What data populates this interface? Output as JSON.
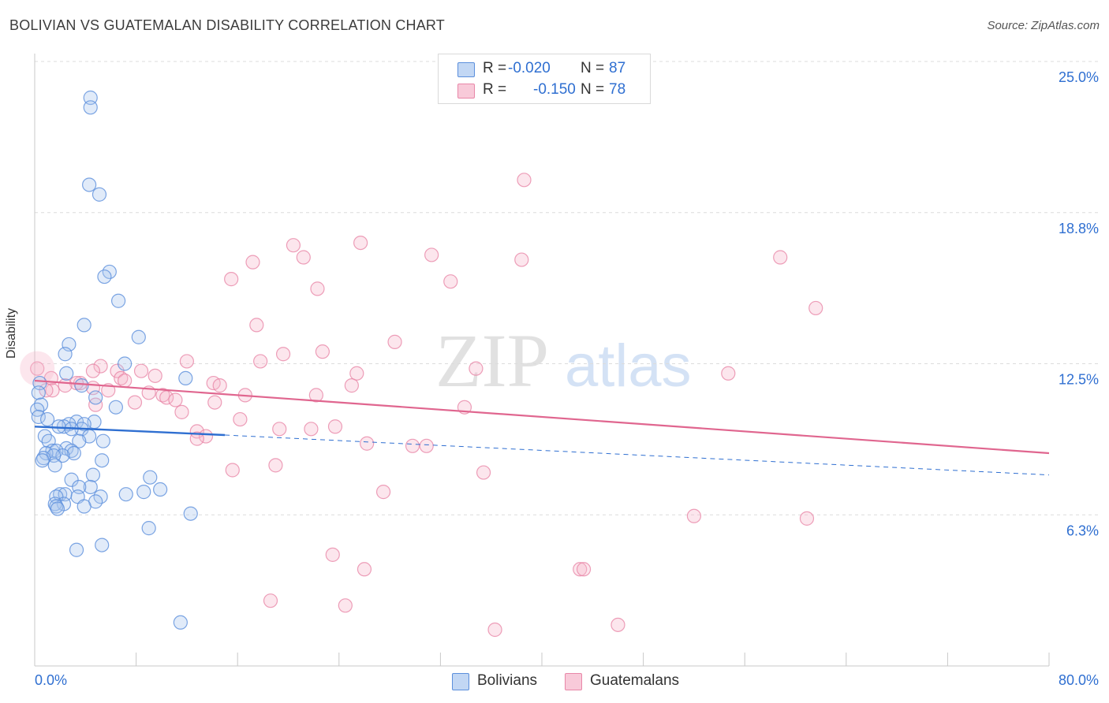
{
  "title": "BOLIVIAN VS GUATEMALAN DISABILITY CORRELATION CHART",
  "source": "Source: ZipAtlas.com",
  "watermark": {
    "zip": "ZIP",
    "atlas": "atlas"
  },
  "legend": {
    "rows": [
      {
        "r_label": "R =",
        "r_value": "-0.020",
        "n_label": "N =",
        "n_value": "87"
      },
      {
        "r_label": "R =",
        "r_value": "-0.150",
        "n_label": "N =",
        "n_value": "78"
      }
    ]
  },
  "bottom_legend": {
    "items": [
      {
        "label": "Bolivians"
      },
      {
        "label": "Guatemalans"
      }
    ]
  },
  "chart_data": {
    "type": "scatter",
    "title": "BOLIVIAN VS GUATEMALAN DISABILITY CORRELATION CHART",
    "ylabel": "Disability",
    "xlabel": "",
    "xlim": [
      0,
      80
    ],
    "ylim": [
      0,
      25
    ],
    "y_ticks": [
      {
        "value": 6.25,
        "label": "6.3%"
      },
      {
        "value": 12.5,
        "label": "12.5%"
      },
      {
        "value": 18.75,
        "label": "18.8%"
      },
      {
        "value": 25,
        "label": "25.0%"
      }
    ],
    "x_tick_labels": {
      "min": "0.0%",
      "max": "80.0%"
    },
    "grid": "horizontal-dashed",
    "legend_position": "top-center",
    "colors": {
      "bolivians": "#5b8fdc",
      "guatemalans": "#e887a8",
      "bolivians_line": "#2f6fd1",
      "guatemalans_line": "#e0668f",
      "tick_label": "#2f6fd1"
    },
    "series": [
      {
        "name": "Bolivians",
        "r": -0.02,
        "n": 87,
        "trend": {
          "x0": 0,
          "y0": 9.9,
          "x1": 15,
          "y1": 9.55,
          "dash_to_x": 80,
          "dash_to_y": 7.9
        },
        "points": [
          [
            4.4,
            23.5
          ],
          [
            4.4,
            23.1
          ],
          [
            4.3,
            19.9
          ],
          [
            5.1,
            19.5
          ],
          [
            5.9,
            16.3
          ],
          [
            5.5,
            16.1
          ],
          [
            6.6,
            15.1
          ],
          [
            3.9,
            14.1
          ],
          [
            8.2,
            13.6
          ],
          [
            2.7,
            13.3
          ],
          [
            2.4,
            12.9
          ],
          [
            7.1,
            12.5
          ],
          [
            2.5,
            12.1
          ],
          [
            11.9,
            11.9
          ],
          [
            0.4,
            11.7
          ],
          [
            3.7,
            11.6
          ],
          [
            0.3,
            11.3
          ],
          [
            4.8,
            11.1
          ],
          [
            0.5,
            10.8
          ],
          [
            6.4,
            10.7
          ],
          [
            0.2,
            10.6
          ],
          [
            0.3,
            10.3
          ],
          [
            1.0,
            10.2
          ],
          [
            3.3,
            10.1
          ],
          [
            4.7,
            10.1
          ],
          [
            3.9,
            10.0
          ],
          [
            2.7,
            10.0
          ],
          [
            2.3,
            9.9
          ],
          [
            1.9,
            9.9
          ],
          [
            3.7,
            9.8
          ],
          [
            2.9,
            9.8
          ],
          [
            0.8,
            9.5
          ],
          [
            4.3,
            9.5
          ],
          [
            1.1,
            9.3
          ],
          [
            5.4,
            9.3
          ],
          [
            3.5,
            9.3
          ],
          [
            2.5,
            9.0
          ],
          [
            1.4,
            8.9
          ],
          [
            2.9,
            8.9
          ],
          [
            1.7,
            8.9
          ],
          [
            0.9,
            8.8
          ],
          [
            3.1,
            8.8
          ],
          [
            2.2,
            8.7
          ],
          [
            1.5,
            8.7
          ],
          [
            0.7,
            8.6
          ],
          [
            5.3,
            8.5
          ],
          [
            0.6,
            8.5
          ],
          [
            1.6,
            8.3
          ],
          [
            4.6,
            7.9
          ],
          [
            9.1,
            7.8
          ],
          [
            2.9,
            7.7
          ],
          [
            4.4,
            7.4
          ],
          [
            3.5,
            7.4
          ],
          [
            9.9,
            7.3
          ],
          [
            8.6,
            7.2
          ],
          [
            7.2,
            7.1
          ],
          [
            2.0,
            7.1
          ],
          [
            2.4,
            7.1
          ],
          [
            5.2,
            7.0
          ],
          [
            1.7,
            7.0
          ],
          [
            3.4,
            7.0
          ],
          [
            4.8,
            6.8
          ],
          [
            2.3,
            6.7
          ],
          [
            1.6,
            6.7
          ],
          [
            3.9,
            6.6
          ],
          [
            1.7,
            6.6
          ],
          [
            1.8,
            6.5
          ],
          [
            12.3,
            6.3
          ],
          [
            9.0,
            5.7
          ],
          [
            5.3,
            5.0
          ],
          [
            3.3,
            4.8
          ],
          [
            11.5,
            1.8
          ]
        ]
      },
      {
        "name": "Guatemalans",
        "r": -0.15,
        "n": 78,
        "trend": {
          "x0": 0,
          "y0": 11.8,
          "x1": 80,
          "y1": 8.8
        },
        "points": [
          [
            38.6,
            20.1
          ],
          [
            25.7,
            17.5
          ],
          [
            20.4,
            17.4
          ],
          [
            31.3,
            17.0
          ],
          [
            21.2,
            16.9
          ],
          [
            17.2,
            16.7
          ],
          [
            38.4,
            16.8
          ],
          [
            58.8,
            16.9
          ],
          [
            15.5,
            16.0
          ],
          [
            32.8,
            15.9
          ],
          [
            22.3,
            15.6
          ],
          [
            61.6,
            14.8
          ],
          [
            17.5,
            14.1
          ],
          [
            28.4,
            13.4
          ],
          [
            22.7,
            13.0
          ],
          [
            19.6,
            12.9
          ],
          [
            17.8,
            12.6
          ],
          [
            12.0,
            12.6
          ],
          [
            5.2,
            12.4
          ],
          [
            34.8,
            12.3
          ],
          [
            8.4,
            12.2
          ],
          [
            6.5,
            12.2
          ],
          [
            4.6,
            12.2
          ],
          [
            25.4,
            12.1
          ],
          [
            54.7,
            12.1
          ],
          [
            9.5,
            12.0
          ],
          [
            0.2,
            12.3
          ],
          [
            1.3,
            11.9
          ],
          [
            6.8,
            11.9
          ],
          [
            7.1,
            11.8
          ],
          [
            14.1,
            11.7
          ],
          [
            3.6,
            11.7
          ],
          [
            4.6,
            11.5
          ],
          [
            3.3,
            11.7
          ],
          [
            2.4,
            11.6
          ],
          [
            25.0,
            11.6
          ],
          [
            14.6,
            11.6
          ],
          [
            5.8,
            11.4
          ],
          [
            1.4,
            11.4
          ],
          [
            0.9,
            11.4
          ],
          [
            9.0,
            11.3
          ],
          [
            16.6,
            11.2
          ],
          [
            22.2,
            11.2
          ],
          [
            10.1,
            11.2
          ],
          [
            10.4,
            11.1
          ],
          [
            11.1,
            11.0
          ],
          [
            7.9,
            10.9
          ],
          [
            14.2,
            10.9
          ],
          [
            4.8,
            10.8
          ],
          [
            33.9,
            10.7
          ],
          [
            11.6,
            10.5
          ],
          [
            16.2,
            10.2
          ],
          [
            12.8,
            9.7
          ],
          [
            19.3,
            9.8
          ],
          [
            23.7,
            9.9
          ],
          [
            21.8,
            9.8
          ],
          [
            13.5,
            9.5
          ],
          [
            12.8,
            9.4
          ],
          [
            26.2,
            9.2
          ],
          [
            29.8,
            9.1
          ],
          [
            30.9,
            9.1
          ],
          [
            19.0,
            8.3
          ],
          [
            15.6,
            8.1
          ],
          [
            35.4,
            8.0
          ],
          [
            27.5,
            7.2
          ],
          [
            52.0,
            6.2
          ],
          [
            60.9,
            6.1
          ],
          [
            23.5,
            4.6
          ],
          [
            26.0,
            4.0
          ],
          [
            43.0,
            4.0
          ],
          [
            43.3,
            4.0
          ],
          [
            18.6,
            2.7
          ],
          [
            24.5,
            2.5
          ],
          [
            36.3,
            1.5
          ],
          [
            46.0,
            1.7
          ]
        ]
      }
    ]
  }
}
